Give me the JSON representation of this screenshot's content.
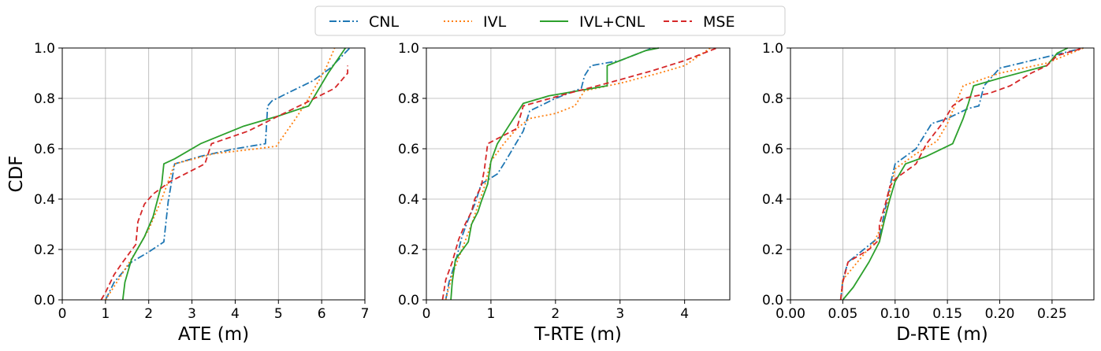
{
  "colors": {
    "CNL": "#1f77b4",
    "IVL": "#ff7f0e",
    "IVL+CNL": "#2ca02c",
    "MSE": "#d62728"
  },
  "legend": {
    "placement": "top-center",
    "entries": [
      {
        "label": "CNL",
        "style": "dashdot"
      },
      {
        "label": "IVL",
        "style": "dotted"
      },
      {
        "label": "IVL+CNL",
        "style": "solid"
      },
      {
        "label": "MSE",
        "style": "dashed"
      }
    ]
  },
  "chart_data": [
    {
      "type": "line",
      "xlabel": "ATE (m)",
      "ylabel": "CDF",
      "xlim": [
        0,
        7
      ],
      "ylim": [
        0,
        1
      ],
      "xticks": [
        "0",
        "1",
        "2",
        "3",
        "4",
        "5",
        "6",
        "7"
      ],
      "yticks": [
        "0.0",
        "0.2",
        "0.4",
        "0.6",
        "0.8",
        "1.0"
      ],
      "grid": true,
      "series": [
        {
          "name": "CNL",
          "x": [
            1.0,
            1.2,
            1.6,
            2.0,
            2.35,
            2.45,
            2.6,
            3.2,
            4.0,
            4.7,
            4.75,
            4.85,
            5.2,
            5.8,
            6.2,
            6.65
          ],
          "y": [
            0.0,
            0.07,
            0.15,
            0.19,
            0.23,
            0.39,
            0.54,
            0.57,
            0.6,
            0.62,
            0.77,
            0.79,
            0.82,
            0.87,
            0.92,
            1.0
          ]
        },
        {
          "name": "IVL",
          "x": [
            1.0,
            1.3,
            1.7,
            2.0,
            2.3,
            2.6,
            3.5,
            4.5,
            4.95,
            5.4,
            5.7,
            6.1,
            6.3
          ],
          "y": [
            0.0,
            0.08,
            0.19,
            0.28,
            0.4,
            0.54,
            0.58,
            0.6,
            0.61,
            0.72,
            0.8,
            0.92,
            1.0
          ]
        },
        {
          "name": "IVL+CNL",
          "x": [
            1.4,
            1.45,
            1.6,
            1.9,
            2.1,
            2.3,
            2.35,
            2.6,
            3.2,
            4.2,
            5.0,
            5.7,
            6.15,
            6.55
          ],
          "y": [
            0.0,
            0.07,
            0.16,
            0.25,
            0.33,
            0.46,
            0.54,
            0.56,
            0.62,
            0.69,
            0.73,
            0.77,
            0.9,
            1.0
          ]
        },
        {
          "name": "MSE",
          "x": [
            0.9,
            1.0,
            1.2,
            1.4,
            1.7,
            1.75,
            1.9,
            2.1,
            2.5,
            3.3,
            3.45,
            4.3,
            5.0,
            5.6,
            6.3,
            6.6,
            6.6
          ],
          "y": [
            0.0,
            0.03,
            0.1,
            0.15,
            0.22,
            0.31,
            0.38,
            0.42,
            0.47,
            0.54,
            0.62,
            0.67,
            0.73,
            0.78,
            0.84,
            0.9,
            0.93
          ]
        }
      ]
    },
    {
      "type": "line",
      "xlabel": "T-RTE (m)",
      "xlim": [
        0,
        4.7
      ],
      "ylim": [
        0,
        1
      ],
      "xticks": [
        "0",
        "1",
        "2",
        "3",
        "4"
      ],
      "yticks": [
        "0.0",
        "0.2",
        "0.4",
        "0.6",
        "0.8",
        "1.0"
      ],
      "grid": true,
      "series": [
        {
          "name": "CNL",
          "x": [
            0.3,
            0.35,
            0.45,
            0.55,
            0.65,
            0.75,
            0.85,
            1.1,
            1.2,
            1.5,
            1.6,
            2.0,
            2.4,
            2.45,
            2.55,
            3.0,
            3.5
          ],
          "y": [
            0.0,
            0.07,
            0.15,
            0.25,
            0.32,
            0.38,
            0.46,
            0.5,
            0.54,
            0.67,
            0.75,
            0.8,
            0.84,
            0.89,
            0.93,
            0.95,
            1.0
          ]
        },
        {
          "name": "IVL",
          "x": [
            0.3,
            0.4,
            0.55,
            0.7,
            0.9,
            1.0,
            1.2,
            1.4,
            1.6,
            2.0,
            2.3,
            2.45,
            3.0,
            3.6,
            4.0,
            4.4
          ],
          "y": [
            0.0,
            0.1,
            0.2,
            0.3,
            0.45,
            0.55,
            0.62,
            0.68,
            0.72,
            0.74,
            0.77,
            0.83,
            0.86,
            0.9,
            0.93,
            1.0
          ]
        },
        {
          "name": "IVL+CNL",
          "x": [
            0.38,
            0.4,
            0.45,
            0.65,
            0.7,
            0.8,
            0.85,
            0.95,
            1.0,
            1.1,
            1.5,
            1.9,
            2.8,
            2.8,
            3.1,
            3.4,
            3.6
          ],
          "y": [
            0.0,
            0.07,
            0.16,
            0.23,
            0.3,
            0.35,
            0.39,
            0.46,
            0.55,
            0.62,
            0.78,
            0.81,
            0.85,
            0.93,
            0.96,
            0.99,
            1.0
          ]
        },
        {
          "name": "MSE",
          "x": [
            0.25,
            0.3,
            0.4,
            0.5,
            0.6,
            0.7,
            0.75,
            0.85,
            0.9,
            0.95,
            1.4,
            1.5,
            2.2,
            2.8,
            3.5,
            4.0,
            4.5
          ],
          "y": [
            0.0,
            0.08,
            0.15,
            0.24,
            0.3,
            0.35,
            0.4,
            0.45,
            0.52,
            0.62,
            0.68,
            0.77,
            0.82,
            0.86,
            0.91,
            0.95,
            1.0
          ]
        }
      ]
    },
    {
      "type": "line",
      "xlabel": "D-RTE (m)",
      "xlim": [
        0,
        0.29
      ],
      "ylim": [
        0,
        1
      ],
      "xticks": [
        "0.00",
        "0.05",
        "0.10",
        "0.15",
        "0.20",
        "0.25"
      ],
      "yticks": [
        "0.0",
        "0.2",
        "0.4",
        "0.6",
        "0.8",
        "1.0"
      ],
      "grid": true,
      "series": [
        {
          "name": "CNL",
          "x": [
            0.048,
            0.05,
            0.055,
            0.07,
            0.085,
            0.09,
            0.095,
            0.1,
            0.12,
            0.135,
            0.15,
            0.17,
            0.18,
            0.185,
            0.2,
            0.22,
            0.25,
            0.28
          ],
          "y": [
            0.0,
            0.08,
            0.15,
            0.2,
            0.25,
            0.35,
            0.45,
            0.54,
            0.6,
            0.7,
            0.72,
            0.76,
            0.77,
            0.85,
            0.92,
            0.94,
            0.97,
            1.0
          ]
        },
        {
          "name": "IVL",
          "x": [
            0.048,
            0.05,
            0.06,
            0.07,
            0.08,
            0.09,
            0.095,
            0.1,
            0.12,
            0.14,
            0.15,
            0.16,
            0.165,
            0.2,
            0.245,
            0.28
          ],
          "y": [
            0.0,
            0.08,
            0.13,
            0.18,
            0.23,
            0.32,
            0.43,
            0.52,
            0.58,
            0.63,
            0.7,
            0.8,
            0.85,
            0.9,
            0.94,
            1.0
          ]
        },
        {
          "name": "IVL+CNL",
          "x": [
            0.05,
            0.06,
            0.075,
            0.085,
            0.09,
            0.095,
            0.1,
            0.11,
            0.13,
            0.155,
            0.165,
            0.17,
            0.175,
            0.2,
            0.245,
            0.255,
            0.265
          ],
          "y": [
            0.0,
            0.05,
            0.15,
            0.23,
            0.32,
            0.4,
            0.47,
            0.54,
            0.57,
            0.62,
            0.72,
            0.78,
            0.85,
            0.88,
            0.93,
            0.98,
            1.0
          ]
        },
        {
          "name": "MSE",
          "x": [
            0.048,
            0.05,
            0.055,
            0.075,
            0.085,
            0.085,
            0.09,
            0.095,
            0.1,
            0.12,
            0.13,
            0.145,
            0.155,
            0.165,
            0.19,
            0.21,
            0.23,
            0.245,
            0.255,
            0.28
          ],
          "y": [
            0.0,
            0.07,
            0.15,
            0.2,
            0.24,
            0.3,
            0.37,
            0.45,
            0.48,
            0.54,
            0.62,
            0.7,
            0.77,
            0.8,
            0.82,
            0.85,
            0.9,
            0.93,
            0.97,
            1.0
          ]
        }
      ]
    }
  ]
}
